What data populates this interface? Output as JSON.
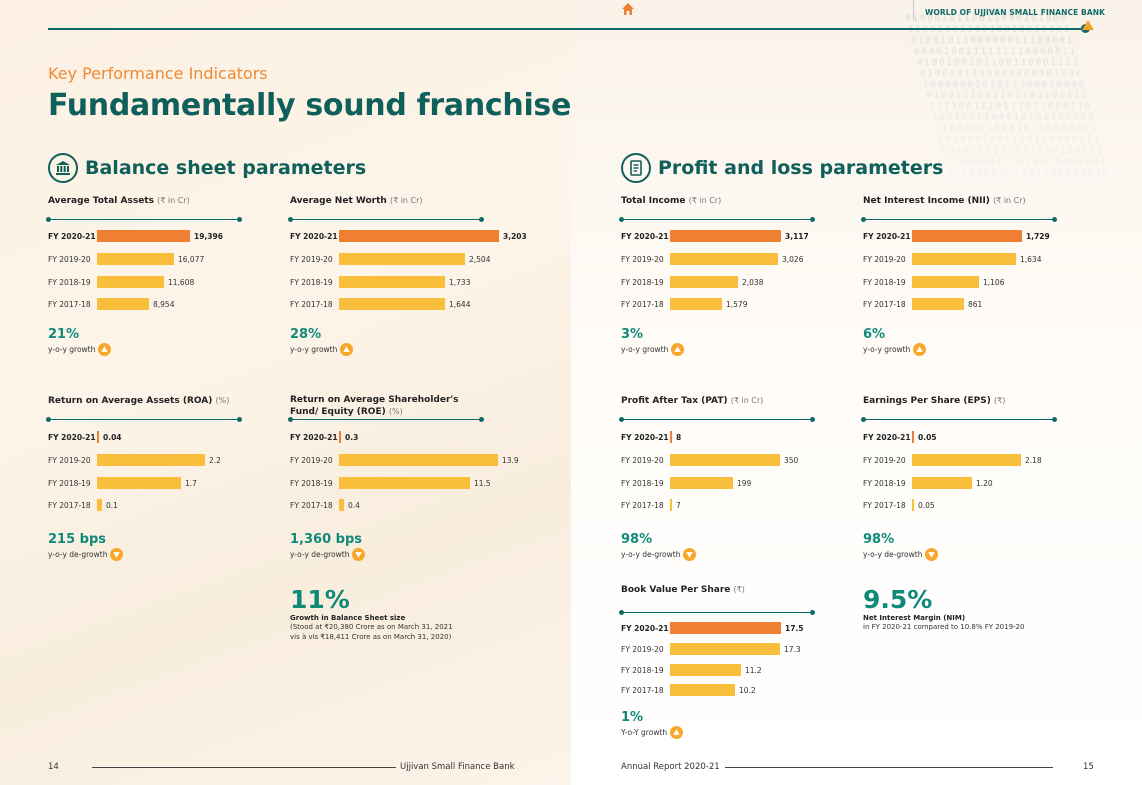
{
  "header": {
    "brand": "WORLD OF UJJIVAN SMALL FINANCE BANK",
    "kpi_label": "Key Performance Indicators",
    "title": "Fundamentally sound franchise"
  },
  "icons": {
    "home": "home-icon",
    "bank": "bank-icon",
    "report": "report-icon",
    "up": "triangle-up-icon",
    "down": "triangle-down-icon"
  },
  "colors": {
    "teal": "#0f5f5b",
    "orange": "#ef7f33",
    "yellow": "#f9be3c",
    "accent": "#f0a128"
  },
  "sections": {
    "balance": {
      "title": "Balance sheet parameters"
    },
    "pnl": {
      "title": "Profit and loss parameters"
    }
  },
  "chart_data": [
    {
      "type": "bar",
      "title": "Average Total Assets",
      "unit": "(₹ in Cr)",
      "categories": [
        "FY 2020-21",
        "FY 2019-20",
        "FY 2018-19",
        "FY 2017-18"
      ],
      "values": [
        19396,
        16077,
        11608,
        8954
      ],
      "labels": [
        "19,396",
        "16,077",
        "11,608",
        "8,954"
      ],
      "growth": "21%",
      "growth_label": "y-o-y growth",
      "direction": "up"
    },
    {
      "type": "bar",
      "title": "Average Net Worth",
      "unit": "(₹ in Cr)",
      "categories": [
        "FY 2020-21",
        "FY 2019-20",
        "FY 2018-19",
        "FY 2017-18"
      ],
      "values": [
        3203,
        2504,
        1733,
        1644
      ],
      "labels": [
        "3,203",
        "2,504",
        "1,733",
        "1,644"
      ],
      "growth": "28%",
      "growth_label": "y-o-y growth",
      "direction": "up"
    },
    {
      "type": "bar",
      "title": "Return on Average Assets (ROA)",
      "unit": "(%)",
      "categories": [
        "FY 2020-21",
        "FY 2019-20",
        "FY 2018-19",
        "FY 2017-18"
      ],
      "values": [
        0.04,
        2.2,
        1.7,
        0.1
      ],
      "labels": [
        "0.04",
        "2.2",
        "1.7",
        "0.1"
      ],
      "growth": "215 bps",
      "growth_label": "y-o-y de-growth",
      "direction": "down"
    },
    {
      "type": "bar",
      "title": "Return on Average Shareholder's Fund/ Equity (ROE)",
      "unit": "(%)",
      "categories": [
        "FY 2020-21",
        "FY 2019-20",
        "FY 2018-19",
        "FY 2017-18"
      ],
      "values": [
        0.3,
        13.9,
        11.5,
        0.4
      ],
      "labels": [
        "0.3",
        "13.9",
        "11.5",
        "0.4"
      ],
      "growth": "1,360 bps",
      "growth_label": "y-o-y de-growth",
      "direction": "down"
    },
    {
      "type": "bar",
      "title": "Total Income",
      "unit": "(₹ in Cr)",
      "categories": [
        "FY 2020-21",
        "FY 2019-20",
        "FY 2018-19",
        "FY 2017-18"
      ],
      "values": [
        3117,
        3026,
        2038,
        1579
      ],
      "labels": [
        "3,117",
        "3,026",
        "2,038",
        "1,579"
      ],
      "growth": "3%",
      "growth_label": "y-o-y growth",
      "direction": "up"
    },
    {
      "type": "bar",
      "title": "Net Interest Income (NII)",
      "unit": "(₹ in Cr)",
      "categories": [
        "FY 2020-21",
        "FY 2019-20",
        "FY 2018-19",
        "FY 2017-18"
      ],
      "values": [
        1729,
        1634,
        1106,
        861
      ],
      "labels": [
        "1,729",
        "1,634",
        "1,106",
        "861"
      ],
      "growth": "6%",
      "growth_label": "y-o-y growth",
      "direction": "up"
    },
    {
      "type": "bar",
      "title": "Profit After Tax (PAT)",
      "unit": "(₹ in Cr)",
      "categories": [
        "FY 2020-21",
        "FY 2019-20",
        "FY 2018-19",
        "FY 2017-18"
      ],
      "values": [
        8,
        350,
        199,
        7
      ],
      "labels": [
        "8",
        "350",
        "199",
        "7"
      ],
      "growth": "98%",
      "growth_label": "y-o-y de-growth",
      "direction": "down"
    },
    {
      "type": "bar",
      "title": "Earnings Per Share (EPS)",
      "unit": "(₹)",
      "categories": [
        "FY 2020-21",
        "FY 2019-20",
        "FY 2018-19",
        "FY 2017-18"
      ],
      "values": [
        0.05,
        2.18,
        1.2,
        0.05
      ],
      "labels": [
        "0.05",
        "2.18",
        "1.20",
        "0.05"
      ],
      "growth": "98%",
      "growth_label": "y-o-y de-growth",
      "direction": "down"
    },
    {
      "type": "bar",
      "title": "Book Value Per Share",
      "unit": "(₹)",
      "categories": [
        "FY 2020-21",
        "FY 2019-20",
        "FY 2018-19",
        "FY 2017-18"
      ],
      "values": [
        17.5,
        17.3,
        11.2,
        10.2
      ],
      "labels": [
        "17.5",
        "17.3",
        "11.2",
        "10.2"
      ],
      "growth": "1%",
      "growth_label": "Y-o-Y growth",
      "direction": "up"
    }
  ],
  "big_stats": {
    "balance_sheet": {
      "value": "11%",
      "heading": "Growth in Balance Sheet size",
      "desc": "(Stood at ₹20,380 Crore as on March 31, 2021 vis à vis ₹18,411 Crore as on March 31, 2020)"
    },
    "nim": {
      "value": "9.5%",
      "heading": "Net Interest Margin (NIM)",
      "desc": "in FY 2020-21 compared to 10.8% FY 2019-20"
    }
  },
  "footer": {
    "left_page": "14",
    "left_text": "Ujjivan Small Finance Bank",
    "right_text": "Annual Report 2020-21",
    "right_page": "15"
  }
}
